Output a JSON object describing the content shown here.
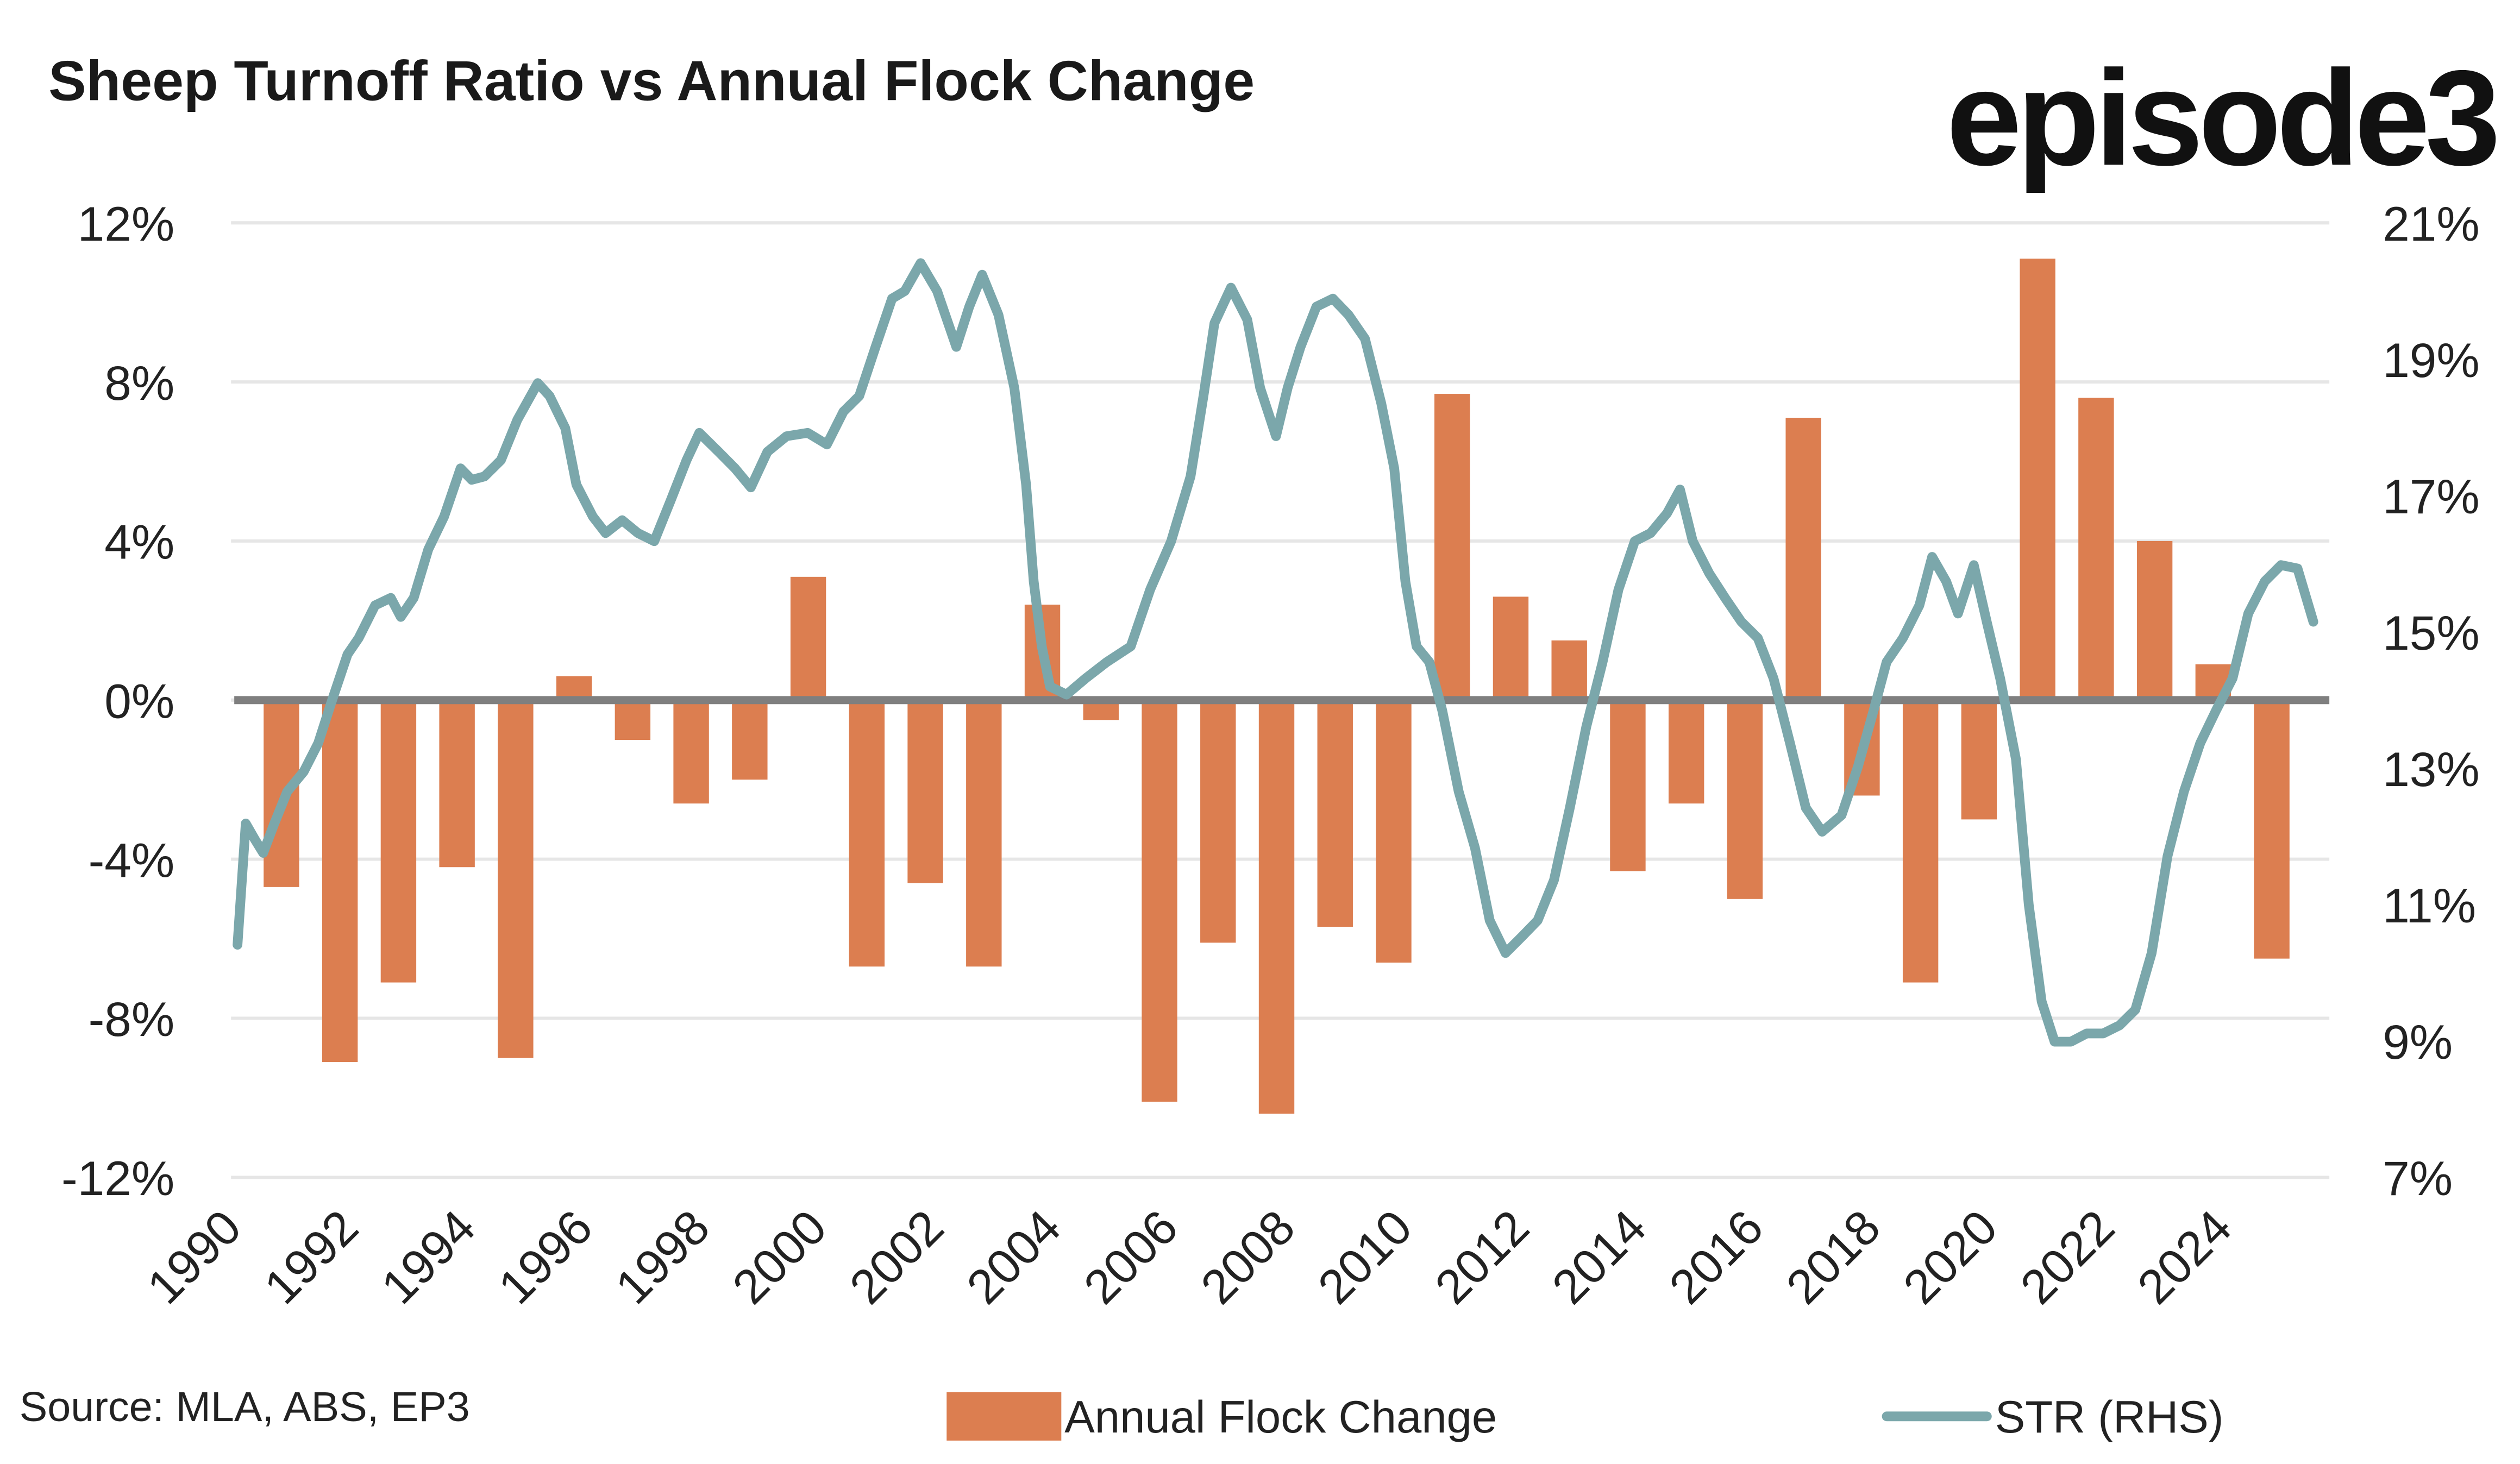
{
  "title": "Sheep Turnoff Ratio vs Annual Flock Change",
  "logo": "episode3",
  "source": "Source: MLA, ABS, EP3",
  "colors": {
    "bars": "#DC7E50",
    "line": "#7BA7AB",
    "zero_line": "#7F7F7F",
    "grid": "#E6E6E6"
  },
  "chart_data": {
    "type": "bar+line",
    "title": "Sheep Turnoff Ratio vs Annual Flock Change",
    "x_range": [
      1990,
      2025.6
    ],
    "x_ticks": [
      "1990",
      "1992",
      "1994",
      "1996",
      "1998",
      "2000",
      "2002",
      "2004",
      "2006",
      "2008",
      "2010",
      "2012",
      "2014",
      "2016",
      "2018",
      "2020",
      "2022",
      "2024"
    ],
    "y_left": {
      "range": [
        -12,
        12
      ],
      "unit": "%",
      "ticks": [
        "12%",
        "8%",
        "4%",
        "0%",
        "-4%",
        "-8%",
        "-12%"
      ]
    },
    "y_right": {
      "range": [
        7,
        21
      ],
      "unit": "%",
      "ticks": [
        "21%",
        "19%",
        "17%",
        "15%",
        "13%",
        "11%",
        "9%",
        "7%"
      ]
    },
    "grid": true,
    "legend": "bottom",
    "series": [
      {
        "name": "Annual Flock Change",
        "type": "bar",
        "axis": "left",
        "x": [
          1990.75,
          1991.75,
          1992.75,
          1993.75,
          1994.75,
          1995.75,
          1996.75,
          1997.75,
          1998.75,
          1999.75,
          2000.75,
          2001.75,
          2002.75,
          2003.75,
          2004.75,
          2005.75,
          2006.75,
          2007.75,
          2008.75,
          2009.75,
          2010.75,
          2011.75,
          2012.75,
          2013.75,
          2014.75,
          2015.75,
          2016.75,
          2017.75,
          2018.75,
          2019.75,
          2020.75,
          2021.75,
          2022.75,
          2023.75,
          2024.75
        ],
        "values": [
          -4.7,
          -9.1,
          -7.1,
          -4.2,
          -9.0,
          0.6,
          -1.0,
          -2.6,
          -2.0,
          3.1,
          -6.7,
          -4.6,
          -6.7,
          2.4,
          -0.5,
          -10.1,
          -6.1,
          -10.4,
          -5.7,
          -6.6,
          7.7,
          2.6,
          1.5,
          -4.3,
          -2.6,
          -5.0,
          7.1,
          -2.4,
          -7.1,
          -3.0,
          11.1,
          7.6,
          4.0,
          0.9,
          -6.5
        ]
      },
      {
        "name": "STR (RHS)",
        "type": "line",
        "axis": "right",
        "x": [
          1990.0,
          1990.14,
          1990.3,
          1990.44,
          1990.63,
          1990.85,
          1991.13,
          1991.38,
          1991.6,
          1991.88,
          1992.07,
          1992.35,
          1992.62,
          1992.79,
          1993.01,
          1993.26,
          1993.53,
          1993.81,
          1994.0,
          1994.22,
          1994.5,
          1994.78,
          1995.13,
          1995.33,
          1995.6,
          1995.79,
          1996.07,
          1996.29,
          1996.57,
          1996.84,
          1997.12,
          1997.4,
          1997.67,
          1997.89,
          1998.22,
          1998.5,
          1998.77,
          1999.05,
          1999.38,
          1999.74,
          2000.07,
          2000.35,
          2000.62,
          2000.9,
          2001.18,
          2001.4,
          2001.67,
          2001.95,
          2002.28,
          2002.5,
          2002.72,
          2003.0,
          2003.27,
          2003.47,
          2003.6,
          2003.74,
          2003.88,
          2004.16,
          2004.49,
          2004.85,
          2005.26,
          2005.59,
          2005.95,
          2006.28,
          2006.5,
          2006.69,
          2006.97,
          2007.25,
          2007.47,
          2007.74,
          2007.94,
          2008.16,
          2008.43,
          2008.71,
          2008.98,
          2009.26,
          2009.54,
          2009.76,
          2009.95,
          2010.14,
          2010.36,
          2010.58,
          2010.86,
          2011.14,
          2011.39,
          2011.66,
          2011.94,
          2012.21,
          2012.49,
          2012.76,
          2013.04,
          2013.32,
          2013.59,
          2013.87,
          2014.14,
          2014.42,
          2014.64,
          2014.86,
          2015.14,
          2015.41,
          2015.69,
          2015.97,
          2016.24,
          2016.52,
          2016.79,
          2017.07,
          2017.4,
          2017.68,
          2017.95,
          2018.17,
          2018.45,
          2018.73,
          2018.95,
          2019.19,
          2019.39,
          2019.66,
          2019.88,
          2020.11,
          2020.38,
          2020.6,
          2020.82,
          2021.04,
          2021.32,
          2021.59,
          2021.87,
          2022.15,
          2022.42,
          2022.7,
          2022.97,
          2023.25,
          2023.53,
          2023.8,
          2024.08,
          2024.35,
          2024.63,
          2024.91,
          2025.19,
          2025.46
        ],
        "values": [
          10.41,
          12.19,
          11.95,
          11.76,
          12.19,
          12.66,
          12.95,
          13.37,
          13.96,
          14.67,
          14.91,
          15.39,
          15.5,
          15.22,
          15.5,
          16.21,
          16.69,
          17.4,
          17.23,
          17.28,
          17.52,
          18.11,
          18.65,
          18.46,
          17.99,
          17.16,
          16.69,
          16.45,
          16.64,
          16.45,
          16.33,
          16.93,
          17.52,
          17.92,
          17.64,
          17.4,
          17.12,
          17.64,
          17.87,
          17.92,
          17.75,
          18.23,
          18.46,
          19.18,
          19.89,
          20.0,
          20.41,
          20.0,
          19.18,
          19.77,
          20.24,
          19.65,
          18.58,
          17.16,
          15.74,
          14.79,
          14.2,
          14.08,
          14.32,
          14.56,
          14.79,
          15.62,
          16.33,
          17.28,
          18.46,
          19.53,
          20.05,
          19.58,
          18.58,
          17.87,
          18.58,
          19.18,
          19.77,
          19.89,
          19.65,
          19.3,
          18.35,
          17.4,
          15.74,
          14.79,
          14.56,
          13.85,
          12.66,
          11.83,
          10.77,
          10.29,
          10.53,
          10.77,
          11.36,
          12.42,
          13.61,
          14.56,
          15.62,
          16.33,
          16.45,
          16.74,
          17.09,
          16.33,
          15.86,
          15.5,
          15.15,
          14.91,
          14.32,
          13.37,
          12.42,
          12.07,
          12.31,
          13.02,
          13.85,
          14.56,
          14.91,
          15.39,
          16.1,
          15.74,
          15.27,
          15.98,
          15.15,
          14.32,
          13.13,
          11.0,
          9.58,
          8.99,
          8.99,
          9.11,
          9.11,
          9.23,
          9.46,
          10.29,
          11.71,
          12.66,
          13.37,
          13.85,
          14.32,
          15.27,
          15.74,
          15.98,
          15.93,
          15.15
        ]
      }
    ]
  }
}
